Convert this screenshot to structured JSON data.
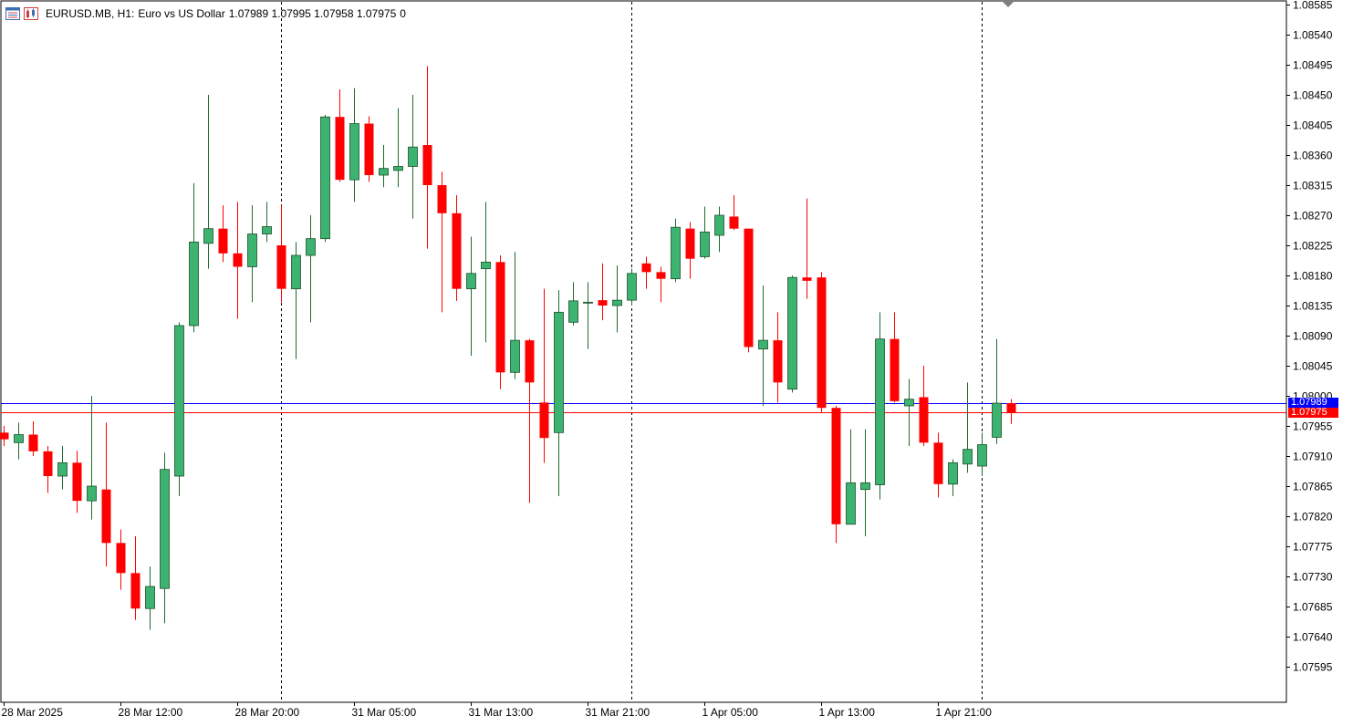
{
  "header": {
    "symbol": "EURUSD.MB, H1:",
    "description": "Euro vs US Dollar",
    "ohlc": "1.07989 1.07995 1.07958 1.07975",
    "extra": "0"
  },
  "price_tags": {
    "bid": "1.07975",
    "ask": "1.07989"
  },
  "colors": {
    "bull": "#3cb371",
    "bear": "#ff0000",
    "ask_line": "#0000ff",
    "bid_line": "#ff0000",
    "axis": "#000000",
    "background": "#ffffff"
  },
  "chart_data": {
    "type": "candlestick",
    "symbol": "EURUSD.MB",
    "timeframe": "H1",
    "ylim": [
      1.0755,
      1.086
    ],
    "y_ticks": [
      1.08585,
      1.0854,
      1.08495,
      1.0845,
      1.08405,
      1.0836,
      1.08315,
      1.0827,
      1.08225,
      1.0818,
      1.08135,
      1.0809,
      1.08045,
      1.08,
      1.07955,
      1.0791,
      1.07865,
      1.0782,
      1.07775,
      1.0773,
      1.07685,
      1.0764,
      1.07595
    ],
    "x_labels": [
      {
        "label": "28 Mar 2025",
        "index": 0
      },
      {
        "label": "28 Mar 12:00",
        "index": 8
      },
      {
        "label": "28 Mar 20:00",
        "index": 16
      },
      {
        "label": "31 Mar 05:00",
        "index": 24
      },
      {
        "label": "31 Mar 13:00",
        "index": 32
      },
      {
        "label": "31 Mar 21:00",
        "index": 40
      },
      {
        "label": "1 Apr 05:00",
        "index": 48
      },
      {
        "label": "1 Apr 13:00",
        "index": 56
      },
      {
        "label": "1 Apr 21:00",
        "index": 64
      }
    ],
    "separators": [
      19,
      43,
      67
    ],
    "bid": 1.07975,
    "ask": 1.07989,
    "candles": [
      {
        "o": 1.07945,
        "h": 1.07955,
        "l": 1.07925,
        "c": 1.07935
      },
      {
        "o": 1.0793,
        "h": 1.0796,
        "l": 1.07905,
        "c": 1.07942
      },
      {
        "o": 1.07942,
        "h": 1.07962,
        "l": 1.0791,
        "c": 1.07917
      },
      {
        "o": 1.07917,
        "h": 1.07925,
        "l": 1.07855,
        "c": 1.0788
      },
      {
        "o": 1.0788,
        "h": 1.07925,
        "l": 1.0786,
        "c": 1.079
      },
      {
        "o": 1.079,
        "h": 1.07918,
        "l": 1.07825,
        "c": 1.07843
      },
      {
        "o": 1.07843,
        "h": 1.08,
        "l": 1.07815,
        "c": 1.07865
      },
      {
        "o": 1.0786,
        "h": 1.0796,
        "l": 1.07745,
        "c": 1.0778
      },
      {
        "o": 1.0778,
        "h": 1.078,
        "l": 1.0771,
        "c": 1.07735
      },
      {
        "o": 1.07735,
        "h": 1.0779,
        "l": 1.07665,
        "c": 1.07682
      },
      {
        "o": 1.07682,
        "h": 1.07745,
        "l": 1.0765,
        "c": 1.07715
      },
      {
        "o": 1.07712,
        "h": 1.07915,
        "l": 1.0766,
        "c": 1.0789
      },
      {
        "o": 1.0788,
        "h": 1.0811,
        "l": 1.0785,
        "c": 1.08105
      },
      {
        "o": 1.08105,
        "h": 1.08318,
        "l": 1.08095,
        "c": 1.0823
      },
      {
        "o": 1.08228,
        "h": 1.0845,
        "l": 1.0819,
        "c": 1.0825
      },
      {
        "o": 1.0825,
        "h": 1.08285,
        "l": 1.082,
        "c": 1.08213
      },
      {
        "o": 1.08213,
        "h": 1.0829,
        "l": 1.08115,
        "c": 1.08193
      },
      {
        "o": 1.08193,
        "h": 1.08285,
        "l": 1.0814,
        "c": 1.08242
      },
      {
        "o": 1.08242,
        "h": 1.0829,
        "l": 1.0823,
        "c": 1.08253
      },
      {
        "o": 1.08225,
        "h": 1.08285,
        "l": 1.0814,
        "c": 1.0816
      },
      {
        "o": 1.0816,
        "h": 1.0823,
        "l": 1.08055,
        "c": 1.0821
      },
      {
        "o": 1.0821,
        "h": 1.0827,
        "l": 1.0811,
        "c": 1.08235
      },
      {
        "o": 1.08235,
        "h": 1.0842,
        "l": 1.0823,
        "c": 1.08417
      },
      {
        "o": 1.08417,
        "h": 1.08458,
        "l": 1.0832,
        "c": 1.08323
      },
      {
        "o": 1.08323,
        "h": 1.0846,
        "l": 1.0829,
        "c": 1.08407
      },
      {
        "o": 1.08407,
        "h": 1.08418,
        "l": 1.0832,
        "c": 1.0833
      },
      {
        "o": 1.0833,
        "h": 1.08375,
        "l": 1.08312,
        "c": 1.0834
      },
      {
        "o": 1.08337,
        "h": 1.0843,
        "l": 1.08312,
        "c": 1.08343
      },
      {
        "o": 1.08343,
        "h": 1.0845,
        "l": 1.08265,
        "c": 1.08372
      },
      {
        "o": 1.08375,
        "h": 1.08493,
        "l": 1.0822,
        "c": 1.08315
      },
      {
        "o": 1.08315,
        "h": 1.08335,
        "l": 1.08125,
        "c": 1.08273
      },
      {
        "o": 1.08273,
        "h": 1.083,
        "l": 1.08142,
        "c": 1.0816
      },
      {
        "o": 1.0816,
        "h": 1.08238,
        "l": 1.0806,
        "c": 1.08183
      },
      {
        "o": 1.0819,
        "h": 1.0829,
        "l": 1.0808,
        "c": 1.082
      },
      {
        "o": 1.082,
        "h": 1.0821,
        "l": 1.0801,
        "c": 1.08035
      },
      {
        "o": 1.08035,
        "h": 1.08215,
        "l": 1.08025,
        "c": 1.08083
      },
      {
        "o": 1.08083,
        "h": 1.08085,
        "l": 1.0784,
        "c": 1.0802
      },
      {
        "o": 1.0799,
        "h": 1.0816,
        "l": 1.079,
        "c": 1.07937
      },
      {
        "o": 1.07945,
        "h": 1.08158,
        "l": 1.0785,
        "c": 1.08125
      },
      {
        "o": 1.0811,
        "h": 1.0817,
        "l": 1.08105,
        "c": 1.08142
      },
      {
        "o": 1.0814,
        "h": 1.0817,
        "l": 1.0807,
        "c": 1.0814
      },
      {
        "o": 1.08143,
        "h": 1.08198,
        "l": 1.08113,
        "c": 1.08135
      },
      {
        "o": 1.08135,
        "h": 1.08195,
        "l": 1.08095,
        "c": 1.08143
      },
      {
        "o": 1.08143,
        "h": 1.0819,
        "l": 1.08135,
        "c": 1.08183
      },
      {
        "o": 1.08198,
        "h": 1.08208,
        "l": 1.0816,
        "c": 1.08185
      },
      {
        "o": 1.08185,
        "h": 1.08193,
        "l": 1.0814,
        "c": 1.08175
      },
      {
        "o": 1.08175,
        "h": 1.08265,
        "l": 1.0817,
        "c": 1.08252
      },
      {
        "o": 1.0825,
        "h": 1.0826,
        "l": 1.08175,
        "c": 1.08205
      },
      {
        "o": 1.08208,
        "h": 1.08283,
        "l": 1.08205,
        "c": 1.08245
      },
      {
        "o": 1.0824,
        "h": 1.08283,
        "l": 1.08215,
        "c": 1.0827
      },
      {
        "o": 1.08268,
        "h": 1.083,
        "l": 1.08248,
        "c": 1.0825
      },
      {
        "o": 1.0825,
        "h": 1.0825,
        "l": 1.08065,
        "c": 1.08073
      },
      {
        "o": 1.0807,
        "h": 1.08165,
        "l": 1.07985,
        "c": 1.08083
      },
      {
        "o": 1.08083,
        "h": 1.08125,
        "l": 1.0799,
        "c": 1.0802
      },
      {
        "o": 1.0801,
        "h": 1.0818,
        "l": 1.08005,
        "c": 1.08177
      },
      {
        "o": 1.08177,
        "h": 1.08295,
        "l": 1.08145,
        "c": 1.08172
      },
      {
        "o": 1.08177,
        "h": 1.08185,
        "l": 1.07975,
        "c": 1.07982
      },
      {
        "o": 1.07982,
        "h": 1.07985,
        "l": 1.0778,
        "c": 1.07808
      },
      {
        "o": 1.07808,
        "h": 1.0795,
        "l": 1.07808,
        "c": 1.0787
      },
      {
        "o": 1.0786,
        "h": 1.0795,
        "l": 1.0779,
        "c": 1.0787
      },
      {
        "o": 1.07867,
        "h": 1.08125,
        "l": 1.07845,
        "c": 1.08085
      },
      {
        "o": 1.08085,
        "h": 1.08125,
        "l": 1.0799,
        "c": 1.07992
      },
      {
        "o": 1.07985,
        "h": 1.08025,
        "l": 1.07925,
        "c": 1.07995
      },
      {
        "o": 1.07998,
        "h": 1.08045,
        "l": 1.07925,
        "c": 1.0793
      },
      {
        "o": 1.0793,
        "h": 1.07945,
        "l": 1.07848,
        "c": 1.07868
      },
      {
        "o": 1.07868,
        "h": 1.07905,
        "l": 1.0785,
        "c": 1.079
      },
      {
        "o": 1.07898,
        "h": 1.0802,
        "l": 1.07885,
        "c": 1.0792
      },
      {
        "o": 1.07895,
        "h": 1.07945,
        "l": 1.0788,
        "c": 1.07927
      },
      {
        "o": 1.07938,
        "h": 1.08085,
        "l": 1.07928,
        "c": 1.07989
      },
      {
        "o": 1.07989,
        "h": 1.07995,
        "l": 1.07958,
        "c": 1.07975
      }
    ]
  }
}
